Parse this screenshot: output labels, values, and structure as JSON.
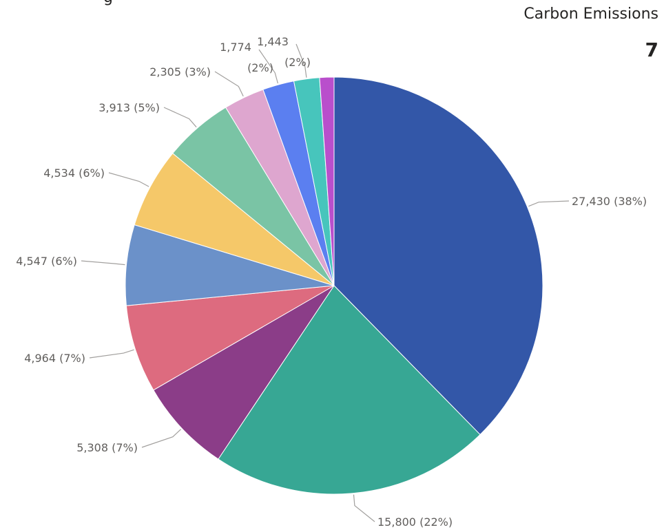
{
  "header": {
    "cut_title": "g"
  },
  "kpi": {
    "title": "Carbon Emissions",
    "value": "7"
  },
  "chart_data": {
    "type": "pie",
    "slices": [
      {
        "value": 27430,
        "label": "27,430 (38%)",
        "color": "#3357a8"
      },
      {
        "value": 15800,
        "label": "15,800 (22%)",
        "color": "#37a794"
      },
      {
        "value": 5308,
        "label": "5,308 (7%)",
        "color": "#8b3d88"
      },
      {
        "value": 4964,
        "label": "4,964 (7%)",
        "color": "#dd6b7f"
      },
      {
        "value": 4547,
        "label": "4,547 (6%)",
        "color": "#6b91c9"
      },
      {
        "value": 4534,
        "label": "4,534 (6%)",
        "color": "#f5c869"
      },
      {
        "value": 3913,
        "label": "3,913 (5%)",
        "color": "#7ac4a5"
      },
      {
        "value": 2305,
        "label": "2,305 (3%)",
        "color": "#dea6cf"
      },
      {
        "value": 1774,
        "label": "1,774 (2%)",
        "color": "#5b7ff0"
      },
      {
        "value": 1443,
        "label": "1,443 (2%)",
        "color": "#47c5bc"
      },
      {
        "value": 808,
        "label": "",
        "color": "#b94fcc"
      }
    ]
  }
}
